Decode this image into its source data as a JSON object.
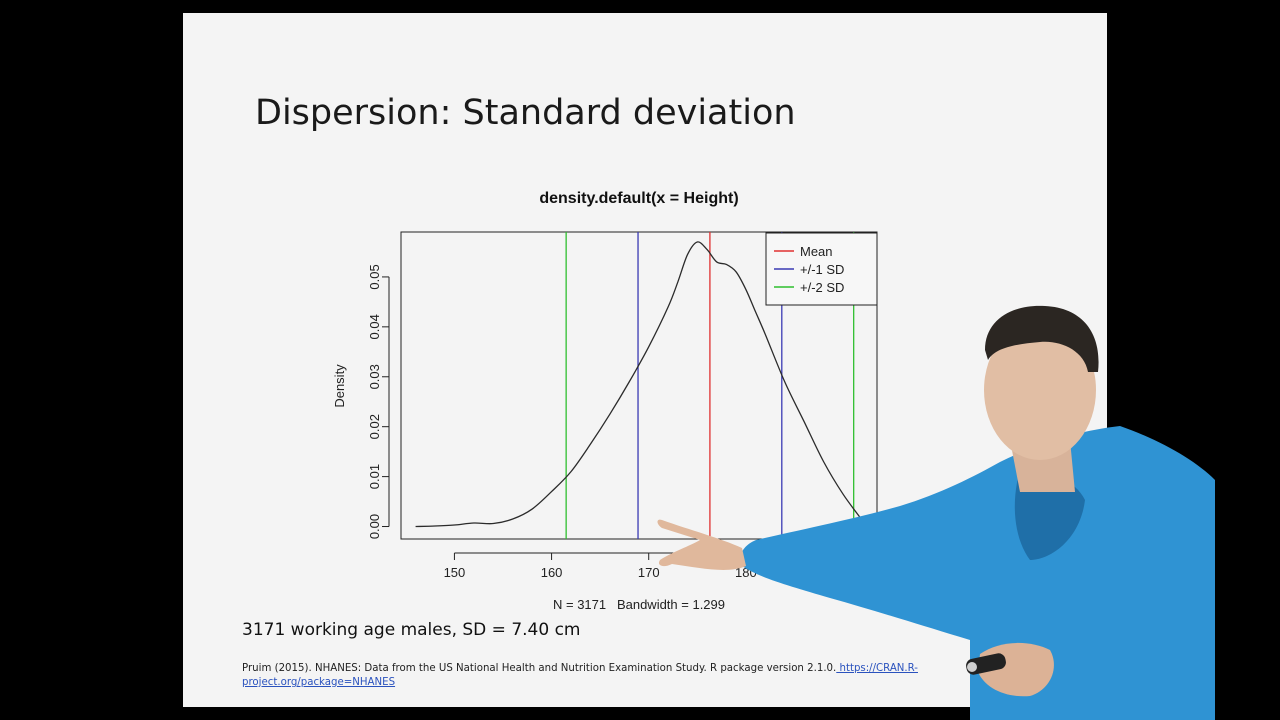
{
  "slide": {
    "title": "Dispersion: Standard deviation",
    "caption": "3171 working age males, SD = 7.40 cm",
    "reference_text": "Pruim (2015). NHANES: Data from the US National Health and Nutrition Examination Study. R package version  2.1.0.",
    "reference_link": " https://CRAN.R-project.org/package=NHANES"
  },
  "chart_data": {
    "type": "line",
    "title": "density.default(x = Height)",
    "xlabel": "N = 3171   Bandwidth = 1.299",
    "ylabel": "Density",
    "xlim": [
      144.5,
      193.5
    ],
    "ylim": [
      -0.0025,
      0.059
    ],
    "xticks": [
      150,
      160,
      170,
      180,
      190
    ],
    "xtick_labels": [
      "150",
      "160",
      "170",
      "180",
      ""
    ],
    "yticks": [
      0.0,
      0.01,
      0.02,
      0.03,
      0.04,
      0.05
    ],
    "ytick_labels": [
      "0.00",
      "0.01",
      "0.02",
      "0.03",
      "0.04",
      "0.05"
    ],
    "grid": false,
    "legend_position": "top-right",
    "legend": [
      {
        "label": "Mean",
        "color": "#e03030"
      },
      {
        "label": "+/-1 SD",
        "color": "#3a3ab4"
      },
      {
        "label": "+/-2 SD",
        "color": "#2fbf2f"
      }
    ],
    "series": [
      {
        "name": "density",
        "color": "#2b2b2b",
        "x": [
          146,
          148,
          150,
          152,
          154,
          156,
          158,
          160,
          162,
          164,
          166,
          168,
          170,
          172,
          173,
          174,
          175,
          176,
          177,
          178,
          179,
          180,
          181,
          182,
          184,
          186,
          188,
          190,
          192
        ],
        "y": [
          0.0,
          0.0001,
          0.0003,
          0.0007,
          0.0006,
          0.0015,
          0.0035,
          0.007,
          0.011,
          0.0165,
          0.0225,
          0.029,
          0.036,
          0.044,
          0.049,
          0.0545,
          0.057,
          0.0555,
          0.053,
          0.0525,
          0.051,
          0.0475,
          0.043,
          0.0385,
          0.029,
          0.021,
          0.013,
          0.0065,
          0.0012
        ]
      }
    ],
    "vlines": [
      {
        "name": "mean",
        "x": 176.3,
        "color": "#e03030"
      },
      {
        "name": "minus-1-sd",
        "x": 168.9,
        "color": "#3a3ab4"
      },
      {
        "name": "plus-1-sd",
        "x": 183.7,
        "color": "#3a3ab4"
      },
      {
        "name": "minus-2-sd",
        "x": 161.5,
        "color": "#2fbf2f"
      },
      {
        "name": "plus-2-sd",
        "x": 191.1,
        "color": "#2fbf2f"
      }
    ]
  }
}
